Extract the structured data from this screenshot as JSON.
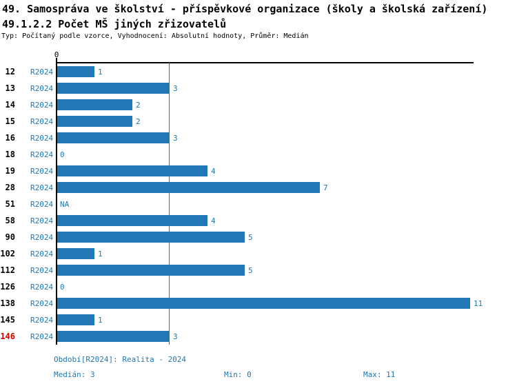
{
  "header": {
    "title_line1": "49. Samospráva ve školství - příspěvkové organizace (školy a školská zařízení)",
    "title_line2": "49.1.2.2 Počet MŠ jiných zřizovatelů",
    "meta": "Typ: Počítaný podle vzorce, Vyhodnocení: Absolutní hodnoty, Průměr: Medián"
  },
  "axis": {
    "zero_label": "0"
  },
  "chart_data": {
    "type": "bar",
    "orientation": "horizontal",
    "title": "49.1.2.2 Počet MŠ jiných zřizovatelů",
    "series_label": "R2024",
    "categories": [
      "12",
      "13",
      "14",
      "15",
      "16",
      "18",
      "19",
      "28",
      "51",
      "58",
      "90",
      "102",
      "112",
      "126",
      "138",
      "145",
      "146"
    ],
    "values": [
      1,
      3,
      2,
      2,
      3,
      0,
      4,
      7,
      null,
      4,
      5,
      1,
      5,
      0,
      11,
      1,
      3
    ],
    "value_labels": [
      "1",
      "3",
      "2",
      "2",
      "3",
      "0",
      "4",
      "7",
      "NA",
      "4",
      "5",
      "1",
      "5",
      "0",
      "11",
      "1",
      "3"
    ],
    "xlim": [
      0,
      11
    ],
    "median": 3,
    "min": 0,
    "max": 11,
    "highlight_category": "146",
    "grid": false,
    "legend_position": "none"
  },
  "footer": {
    "period": "Období[R2024]: Realita - 2024",
    "median": "Medián: 3",
    "min": "Min: 0",
    "max": "Max: 11"
  },
  "colors": {
    "bar": "#2277B4",
    "blue_text": "#1F77B4",
    "median_line": "#1F77B4",
    "highlight_red": "#CC0000",
    "axis": "#000000"
  }
}
